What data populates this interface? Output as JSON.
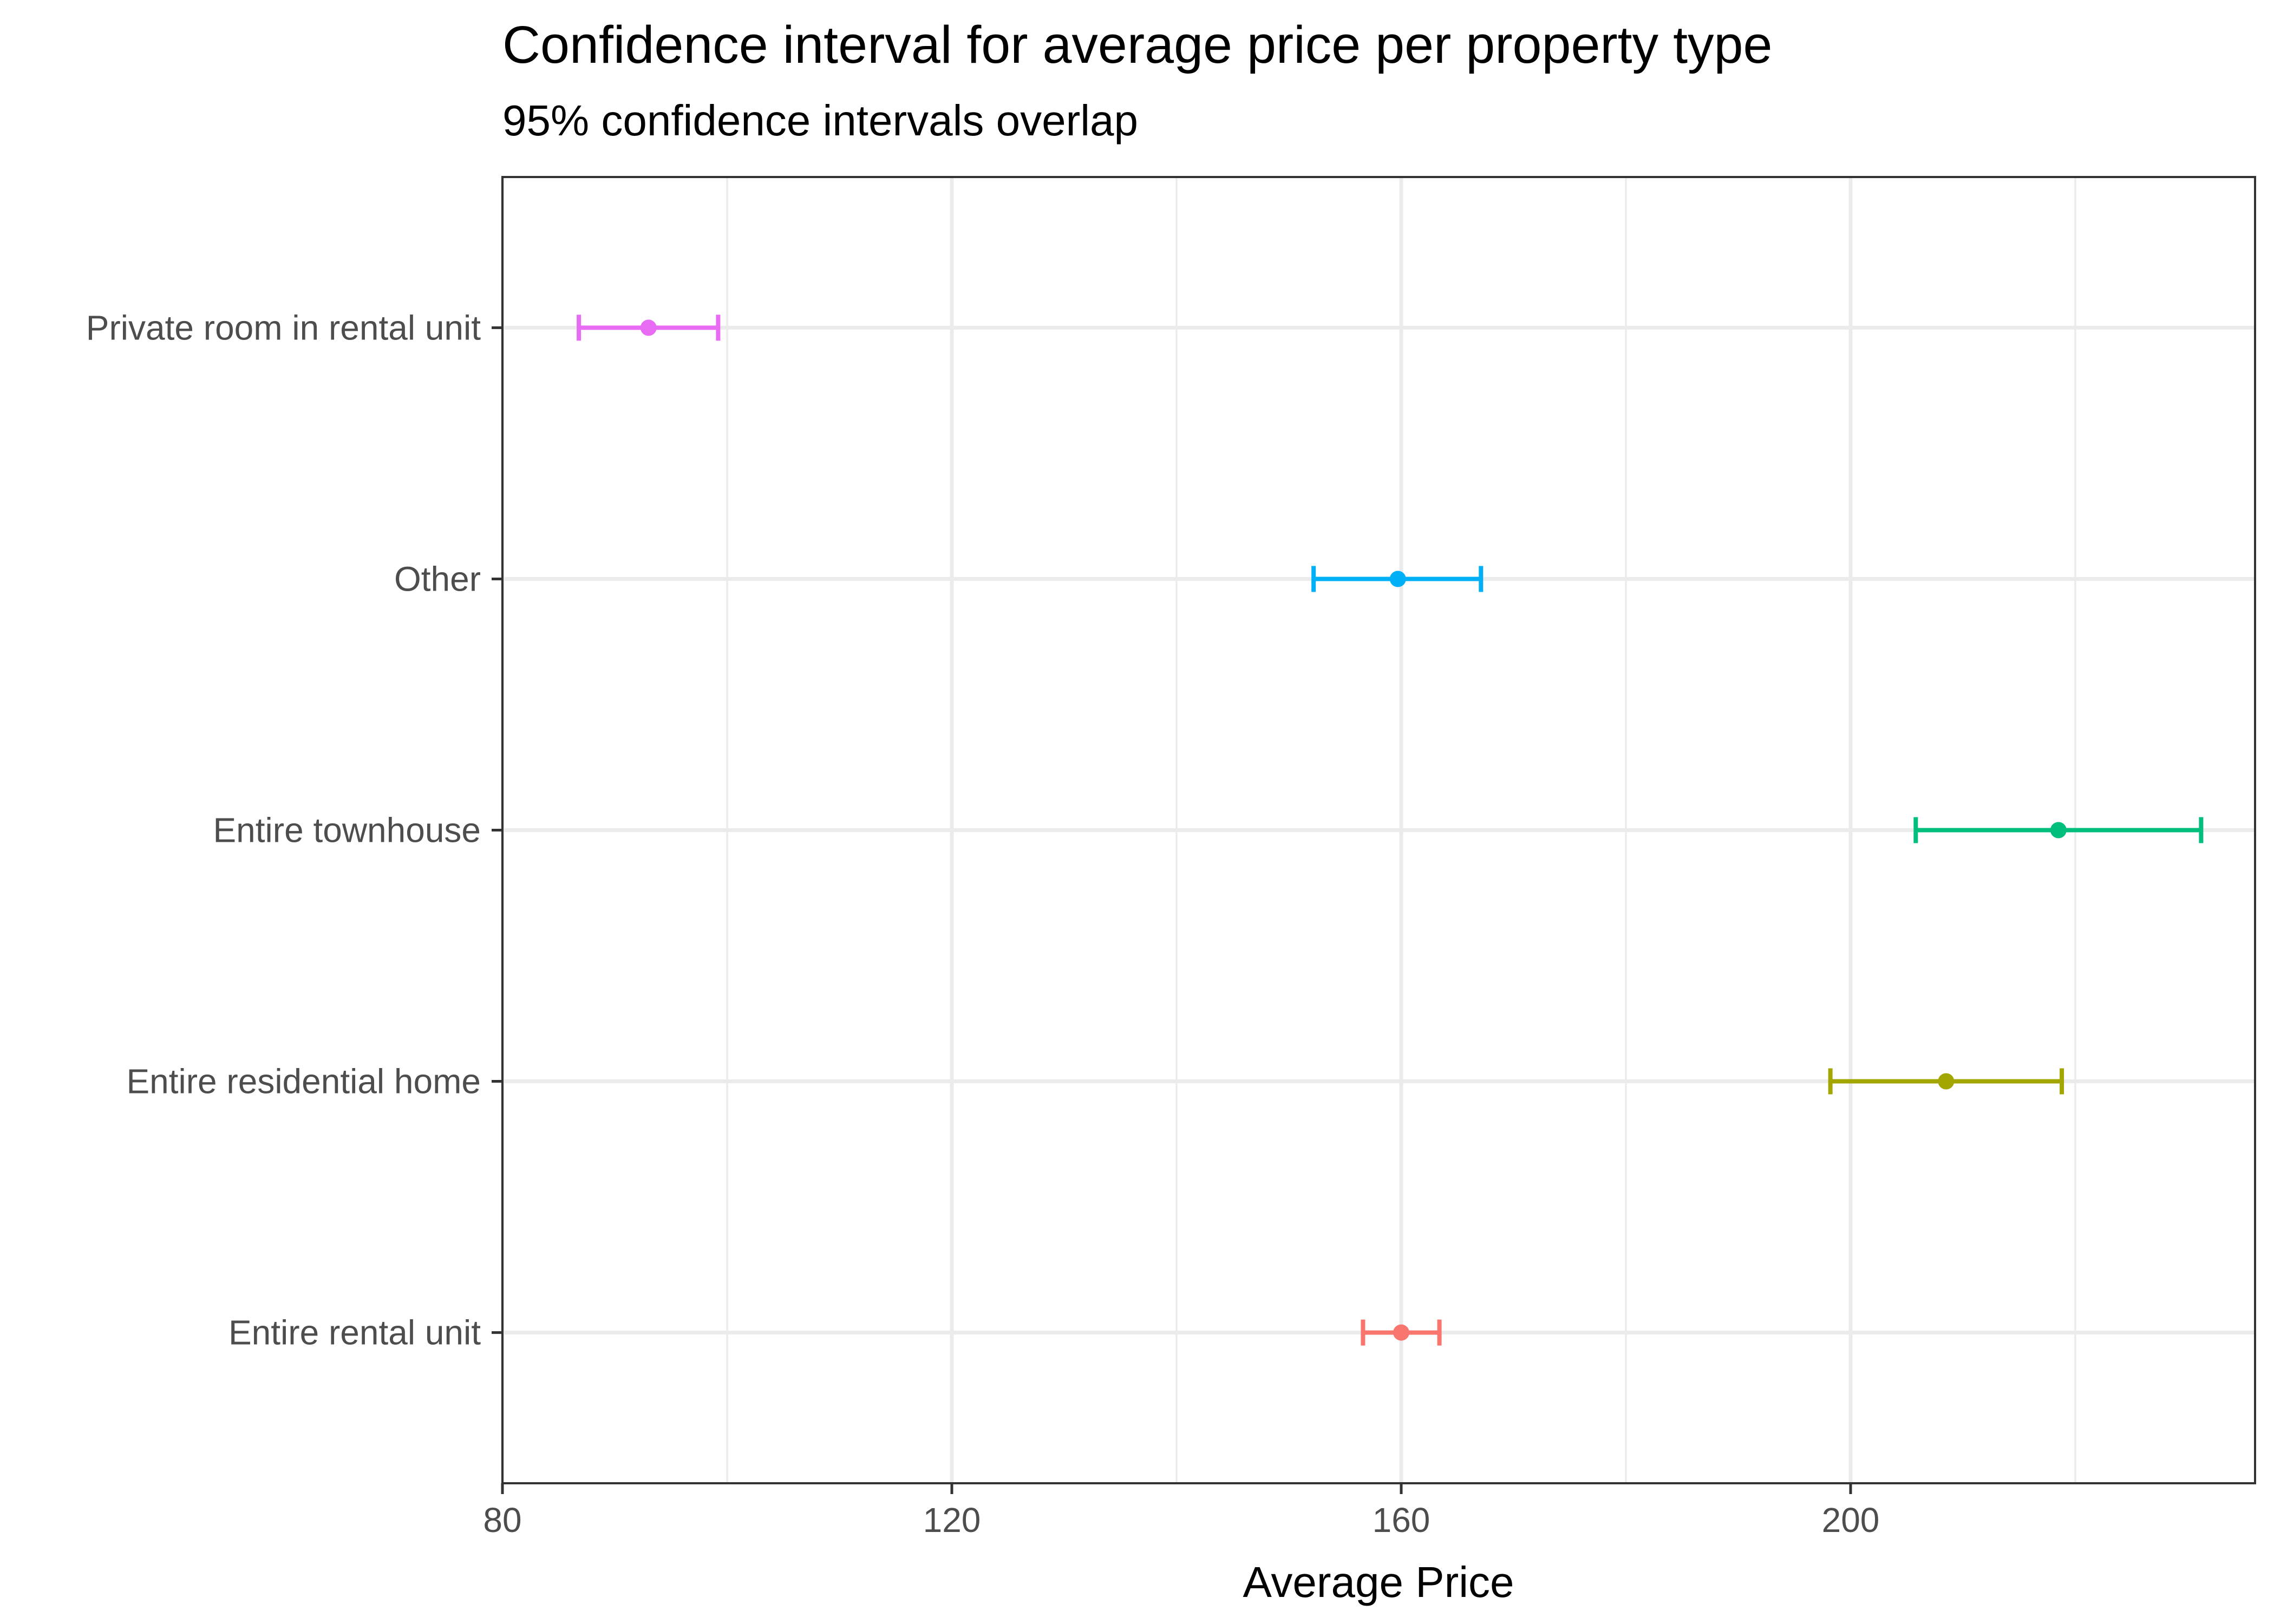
{
  "chart_data": {
    "type": "errorbar",
    "title": "Confidence interval for average price per property type",
    "subtitle": "95% confidence intervals overlap",
    "xlabel": "Average Price",
    "ylabel": "",
    "xlim": [
      80,
      236
    ],
    "x_ticks": [
      80,
      120,
      160,
      200
    ],
    "x_minor_ticks": [
      100,
      140,
      180,
      220
    ],
    "grid": true,
    "legend": "none",
    "categories": [
      "Entire rental unit",
      "Entire residential home",
      "Entire townhouse",
      "Other",
      "Private room in rental unit"
    ],
    "points": [
      {
        "category": "Entire rental unit",
        "mean": 160.0,
        "lower": 156.6,
        "upper": 163.4,
        "color": "#F8766D"
      },
      {
        "category": "Entire residential home",
        "mean": 208.5,
        "lower": 198.2,
        "upper": 218.8,
        "color": "#A3A500"
      },
      {
        "category": "Entire townhouse",
        "mean": 218.5,
        "lower": 205.8,
        "upper": 231.2,
        "color": "#00BF7D"
      },
      {
        "category": "Other",
        "mean": 159.7,
        "lower": 152.2,
        "upper": 167.1,
        "color": "#00B0F6"
      },
      {
        "category": "Private room in rental unit",
        "mean": 93.0,
        "lower": 86.8,
        "upper": 99.2,
        "color": "#E76BF3"
      }
    ]
  }
}
